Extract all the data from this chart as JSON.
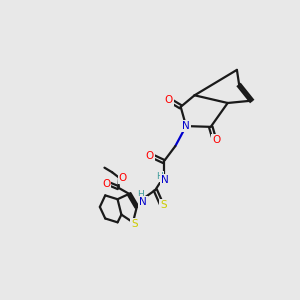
{
  "bg_color": "#e8e8e8",
  "bond_color": "#1a1a1a",
  "atoms": {
    "N": "#0000cc",
    "O": "#ff0000",
    "S": "#cccc00",
    "H": "#3a9a9a"
  },
  "figsize": [
    3.0,
    3.0
  ],
  "dpi": 100
}
